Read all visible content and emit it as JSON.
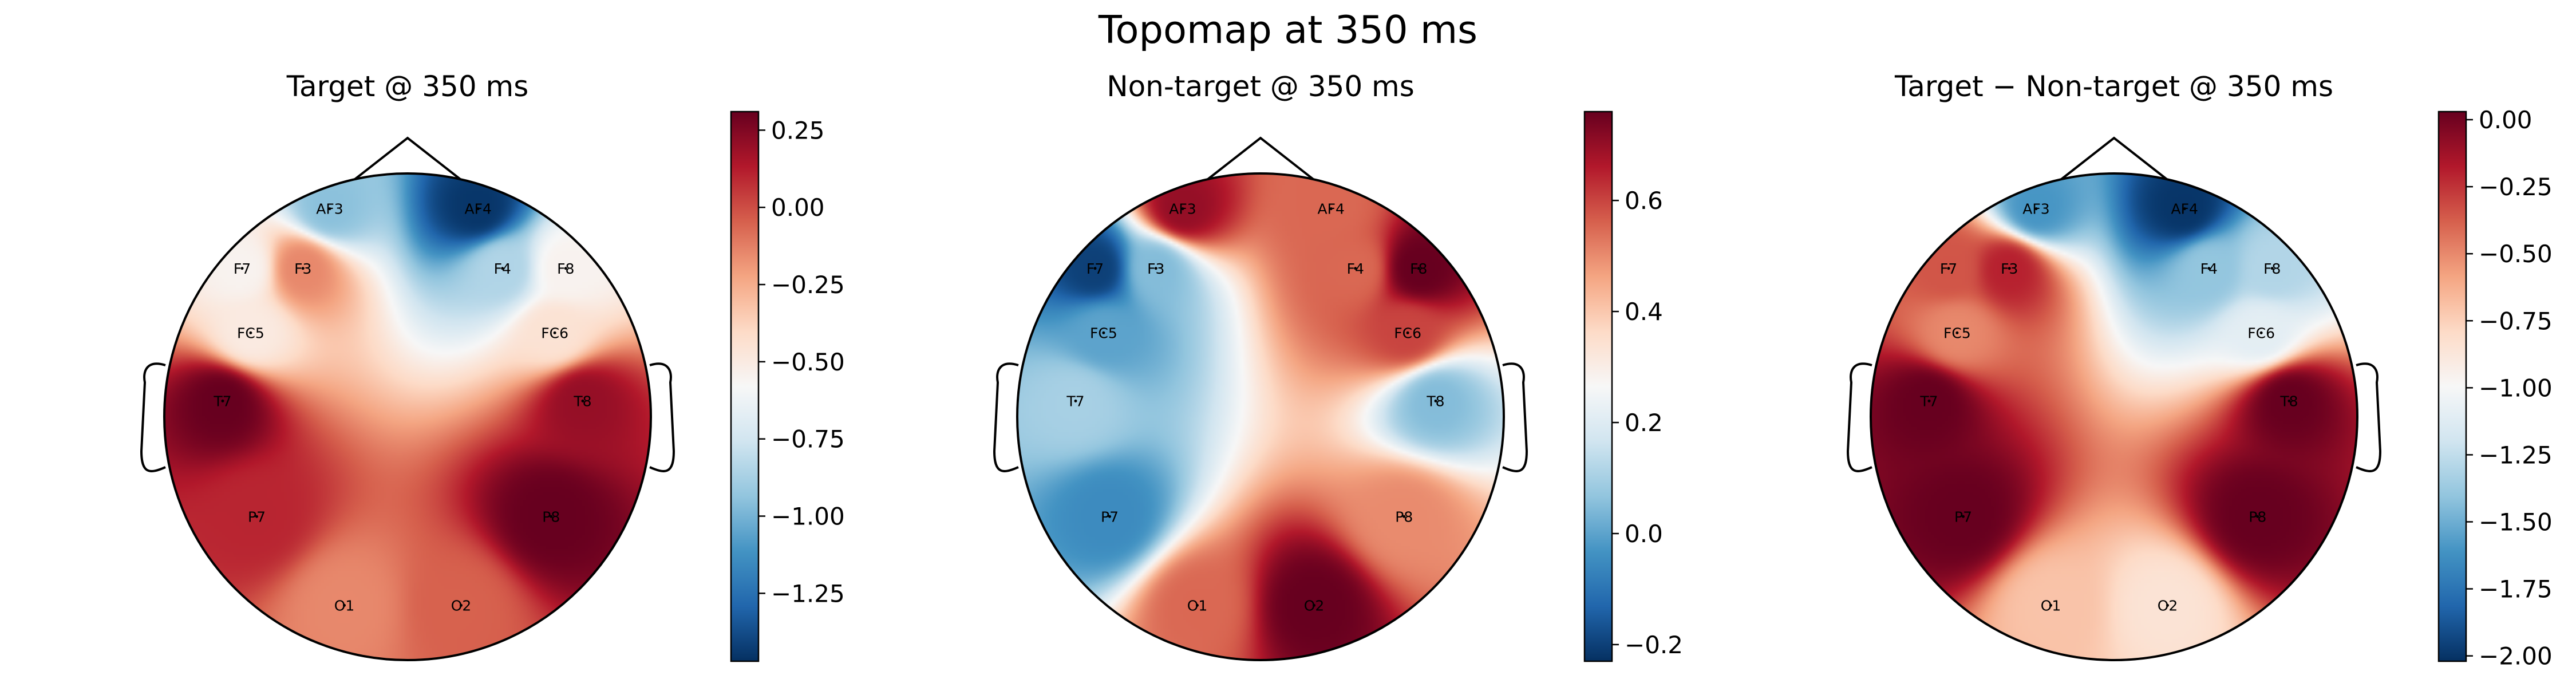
{
  "figure_title": "Topomap at 350 ms",
  "chart_data": [
    {
      "type": "heatmap",
      "subtype": "eeg-topomap",
      "title": "Target @ 350 ms",
      "colormap": "RdBu_r",
      "vlim": [
        -1.47,
        0.31
      ],
      "colorbar_ticks": [
        0.25,
        0.0,
        -0.25,
        -0.5,
        -0.75,
        -1.0,
        -1.25
      ],
      "colorbar_tick_labels": [
        "0.25",
        "0.00",
        "−0.25",
        "−0.50",
        "−0.75",
        "−1.00",
        "−1.25"
      ],
      "channels": [
        {
          "name": "AF3",
          "value": -0.95
        },
        {
          "name": "AF4",
          "value": -1.45
        },
        {
          "name": "F7",
          "value": -0.55
        },
        {
          "name": "F3",
          "value": -0.15
        },
        {
          "name": "F4",
          "value": -0.85
        },
        {
          "name": "F8",
          "value": -0.55
        },
        {
          "name": "FC5",
          "value": -0.5
        },
        {
          "name": "FC6",
          "value": -0.45
        },
        {
          "name": "T7",
          "value": 0.31
        },
        {
          "name": "T8",
          "value": 0.2
        },
        {
          "name": "P7",
          "value": 0.1
        },
        {
          "name": "P8",
          "value": 0.31
        },
        {
          "name": "O1",
          "value": -0.15
        },
        {
          "name": "O2",
          "value": -0.05
        }
      ]
    },
    {
      "type": "heatmap",
      "subtype": "eeg-topomap",
      "title": "Non-target @ 350 ms",
      "colormap": "RdBu_r",
      "vlim": [
        -0.23,
        0.76
      ],
      "colorbar_ticks": [
        0.6,
        0.4,
        0.2,
        0.0,
        -0.2
      ],
      "colorbar_tick_labels": [
        "0.6",
        "0.4",
        "0.2",
        "0.0",
        "−0.2"
      ],
      "channels": [
        {
          "name": "AF3",
          "value": 0.7
        },
        {
          "name": "AF4",
          "value": 0.55
        },
        {
          "name": "F7",
          "value": -0.2
        },
        {
          "name": "F3",
          "value": 0.05
        },
        {
          "name": "F4",
          "value": 0.55
        },
        {
          "name": "F8",
          "value": 0.76
        },
        {
          "name": "FC5",
          "value": 0.0
        },
        {
          "name": "FC6",
          "value": 0.6
        },
        {
          "name": "T7",
          "value": 0.1
        },
        {
          "name": "T8",
          "value": 0.05
        },
        {
          "name": "P7",
          "value": -0.05
        },
        {
          "name": "P8",
          "value": 0.5
        },
        {
          "name": "O1",
          "value": 0.55
        },
        {
          "name": "O2",
          "value": 0.76
        }
      ]
    },
    {
      "type": "heatmap",
      "subtype": "eeg-topomap",
      "title": "Target − Non-target @ 350 ms",
      "colormap": "RdBu_r",
      "vlim": [
        -2.02,
        0.03
      ],
      "colorbar_ticks": [
        0.0,
        -0.25,
        -0.5,
        -0.75,
        -1.0,
        -1.25,
        -1.5,
        -1.75,
        -2.0
      ],
      "colorbar_tick_labels": [
        "0.00",
        "−0.25",
        "−0.50",
        "−0.75",
        "−1.00",
        "−1.25",
        "−1.50",
        "−1.75",
        "−2.00"
      ],
      "channels": [
        {
          "name": "AF3",
          "value": -1.6
        },
        {
          "name": "AF4",
          "value": -2.0
        },
        {
          "name": "F7",
          "value": -0.35
        },
        {
          "name": "F3",
          "value": -0.2
        },
        {
          "name": "F4",
          "value": -1.4
        },
        {
          "name": "F8",
          "value": -1.3
        },
        {
          "name": "FC5",
          "value": -0.5
        },
        {
          "name": "FC6",
          "value": -1.1
        },
        {
          "name": "T7",
          "value": 0.03
        },
        {
          "name": "T8",
          "value": 0.03
        },
        {
          "name": "P7",
          "value": 0.03
        },
        {
          "name": "P8",
          "value": 0.03
        },
        {
          "name": "O1",
          "value": -0.7
        },
        {
          "name": "O2",
          "value": -0.85
        }
      ]
    }
  ]
}
